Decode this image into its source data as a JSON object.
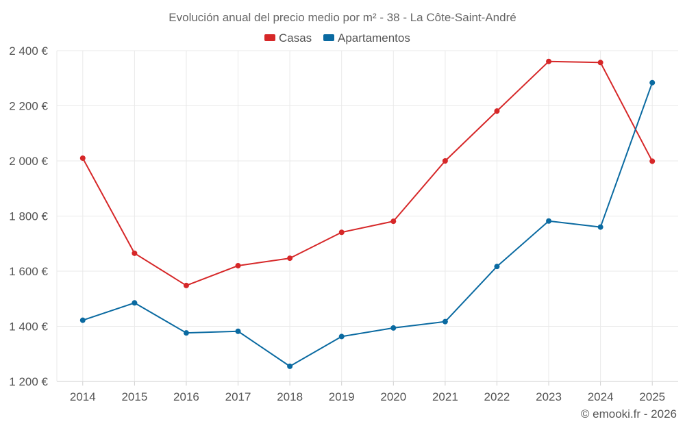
{
  "chart_data": {
    "type": "line",
    "title": "Evolución anual del precio medio por m² - 38 - La Côte-Saint-André",
    "categories": [
      "2014",
      "2015",
      "2016",
      "2017",
      "2018",
      "2019",
      "2020",
      "2021",
      "2022",
      "2023",
      "2024",
      "2025"
    ],
    "ylim": [
      1200,
      2400
    ],
    "yticks": [
      1200,
      1400,
      1600,
      1800,
      2000,
      2200,
      2400
    ],
    "ytick_labels": [
      "1 200 €",
      "1 400 €",
      "1 600 €",
      "1 800 €",
      "2 000 €",
      "2 200 €",
      "2 400 €"
    ],
    "grid": true,
    "legend_position": "top-center",
    "series": [
      {
        "name": "Casas",
        "color": "#d62728",
        "values": [
          2010,
          1665,
          1548,
          1620,
          1647,
          1741,
          1781,
          2000,
          2181,
          2361,
          2357,
          1999
        ]
      },
      {
        "name": "Apartamentos",
        "color": "#0a6aa1",
        "values": [
          1422,
          1485,
          1376,
          1382,
          1255,
          1363,
          1394,
          1417,
          1617,
          1782,
          1760,
          2284
        ]
      }
    ]
  },
  "credit": "© emooki.fr - 2026"
}
